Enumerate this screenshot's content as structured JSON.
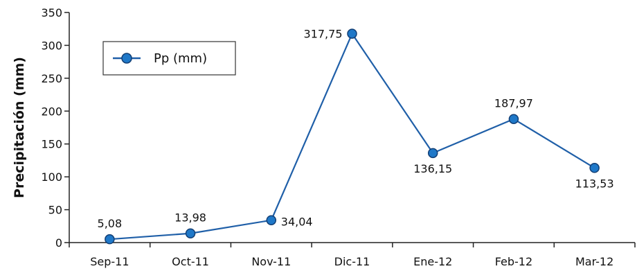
{
  "chart_data": {
    "type": "line",
    "categories": [
      "Sep-11",
      "Oct-11",
      "Nov-11",
      "Dic-11",
      "Ene-12",
      "Feb-12",
      "Mar-12"
    ],
    "series": [
      {
        "name": "Pp (mm)",
        "values": [
          5.08,
          13.98,
          34.04,
          317.75,
          136.15,
          187.97,
          113.53
        ],
        "labels": [
          "5,08",
          "13,98",
          "34,04",
          "317,75",
          "136,15",
          "187,97",
          "113,53"
        ],
        "color": "#1f5fa8",
        "marker_color": "#1f78c8"
      }
    ],
    "title": "",
    "xlabel": "",
    "ylabel": "Precipitación (mm)",
    "ylim": [
      0,
      350
    ],
    "yticks": [
      0,
      50,
      100,
      150,
      200,
      250,
      300,
      350
    ],
    "grid": false,
    "legend_position": "top-left"
  }
}
